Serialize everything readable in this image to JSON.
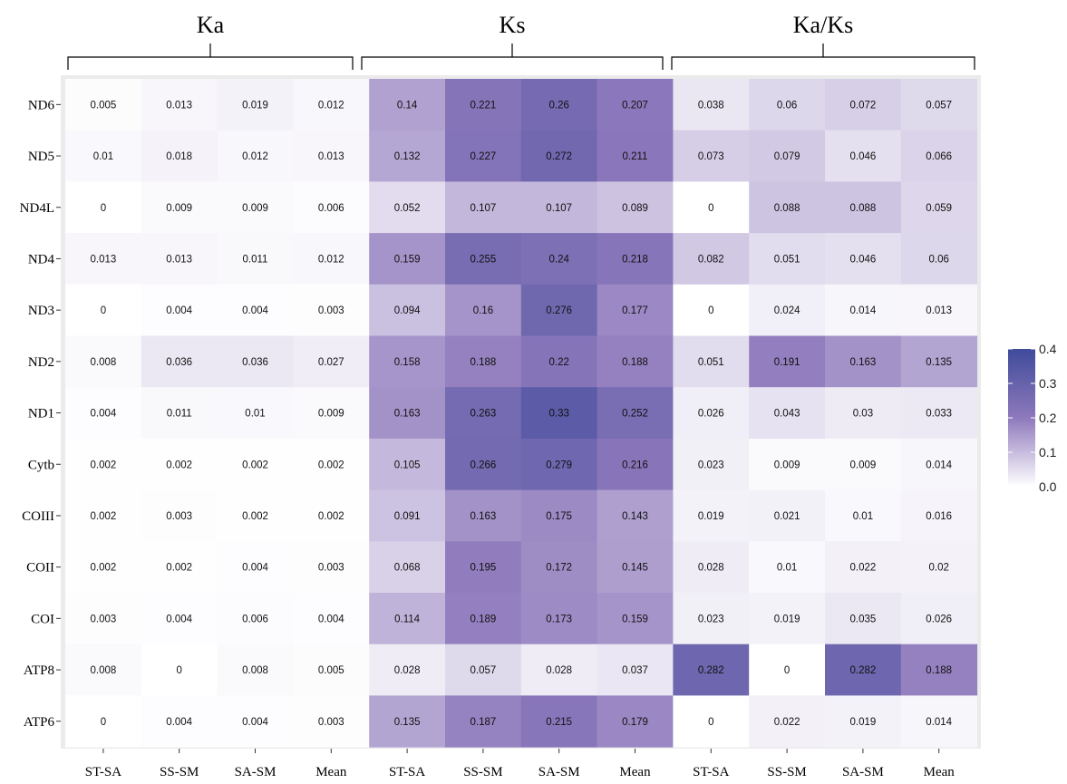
{
  "chart_data": {
    "type": "heatmap",
    "groups": [
      "Ka",
      "Ks",
      "Ka/Ks"
    ],
    "comparisons": [
      "ST-SA",
      "SS-SM",
      "SA-SM",
      "Mean"
    ],
    "rows": [
      "ND6",
      "ND5",
      "ND4L",
      "ND4",
      "ND3",
      "ND2",
      "ND1",
      "Cytb",
      "COIII",
      "COII",
      "COI",
      "ATP8",
      "ATP6"
    ],
    "values": [
      [
        0.005,
        0.013,
        0.019,
        0.012,
        0.14,
        0.221,
        0.26,
        0.207,
        0.038,
        0.06,
        0.072,
        0.057
      ],
      [
        0.01,
        0.018,
        0.012,
        0.013,
        0.132,
        0.227,
        0.272,
        0.211,
        0.073,
        0.079,
        0.046,
        0.066
      ],
      [
        0,
        0.009,
        0.009,
        0.006,
        0.052,
        0.107,
        0.107,
        0.089,
        0,
        0.088,
        0.088,
        0.059
      ],
      [
        0.013,
        0.013,
        0.011,
        0.012,
        0.159,
        0.255,
        0.24,
        0.218,
        0.082,
        0.051,
        0.046,
        0.06
      ],
      [
        0,
        0.004,
        0.004,
        0.003,
        0.094,
        0.16,
        0.276,
        0.177,
        0,
        0.024,
        0.014,
        0.013
      ],
      [
        0.008,
        0.036,
        0.036,
        0.027,
        0.158,
        0.188,
        0.22,
        0.188,
        0.051,
        0.191,
        0.163,
        0.135
      ],
      [
        0.004,
        0.011,
        0.01,
        0.009,
        0.163,
        0.263,
        0.33,
        0.252,
        0.026,
        0.043,
        0.03,
        0.033
      ],
      [
        0.002,
        0.002,
        0.002,
        0.002,
        0.105,
        0.266,
        0.279,
        0.216,
        0.023,
        0.009,
        0.009,
        0.014
      ],
      [
        0.002,
        0.003,
        0.002,
        0.002,
        0.091,
        0.163,
        0.175,
        0.143,
        0.019,
        0.021,
        0.01,
        0.016
      ],
      [
        0.002,
        0.002,
        0.004,
        0.003,
        0.068,
        0.195,
        0.172,
        0.145,
        0.028,
        0.01,
        0.022,
        0.02
      ],
      [
        0.003,
        0.004,
        0.006,
        0.004,
        0.114,
        0.189,
        0.173,
        0.159,
        0.023,
        0.019,
        0.035,
        0.026
      ],
      [
        0.008,
        0,
        0.008,
        0.005,
        0.028,
        0.057,
        0.028,
        0.037,
        0.282,
        0,
        0.282,
        0.188
      ],
      [
        0,
        0.004,
        0.004,
        0.003,
        0.135,
        0.187,
        0.215,
        0.179,
        0,
        0.022,
        0.019,
        0.014
      ]
    ],
    "legend": {
      "position": "right",
      "min": 0,
      "max": 0.4,
      "ticks": [
        "0.0",
        "0.1",
        "0.2",
        "0.3",
        "0.4"
      ],
      "low_color": "#ffffff",
      "high_color": "#3f4b9b",
      "mid_color": "#8e79bc"
    },
    "panel_background": "#ebebeb",
    "grid": true
  }
}
